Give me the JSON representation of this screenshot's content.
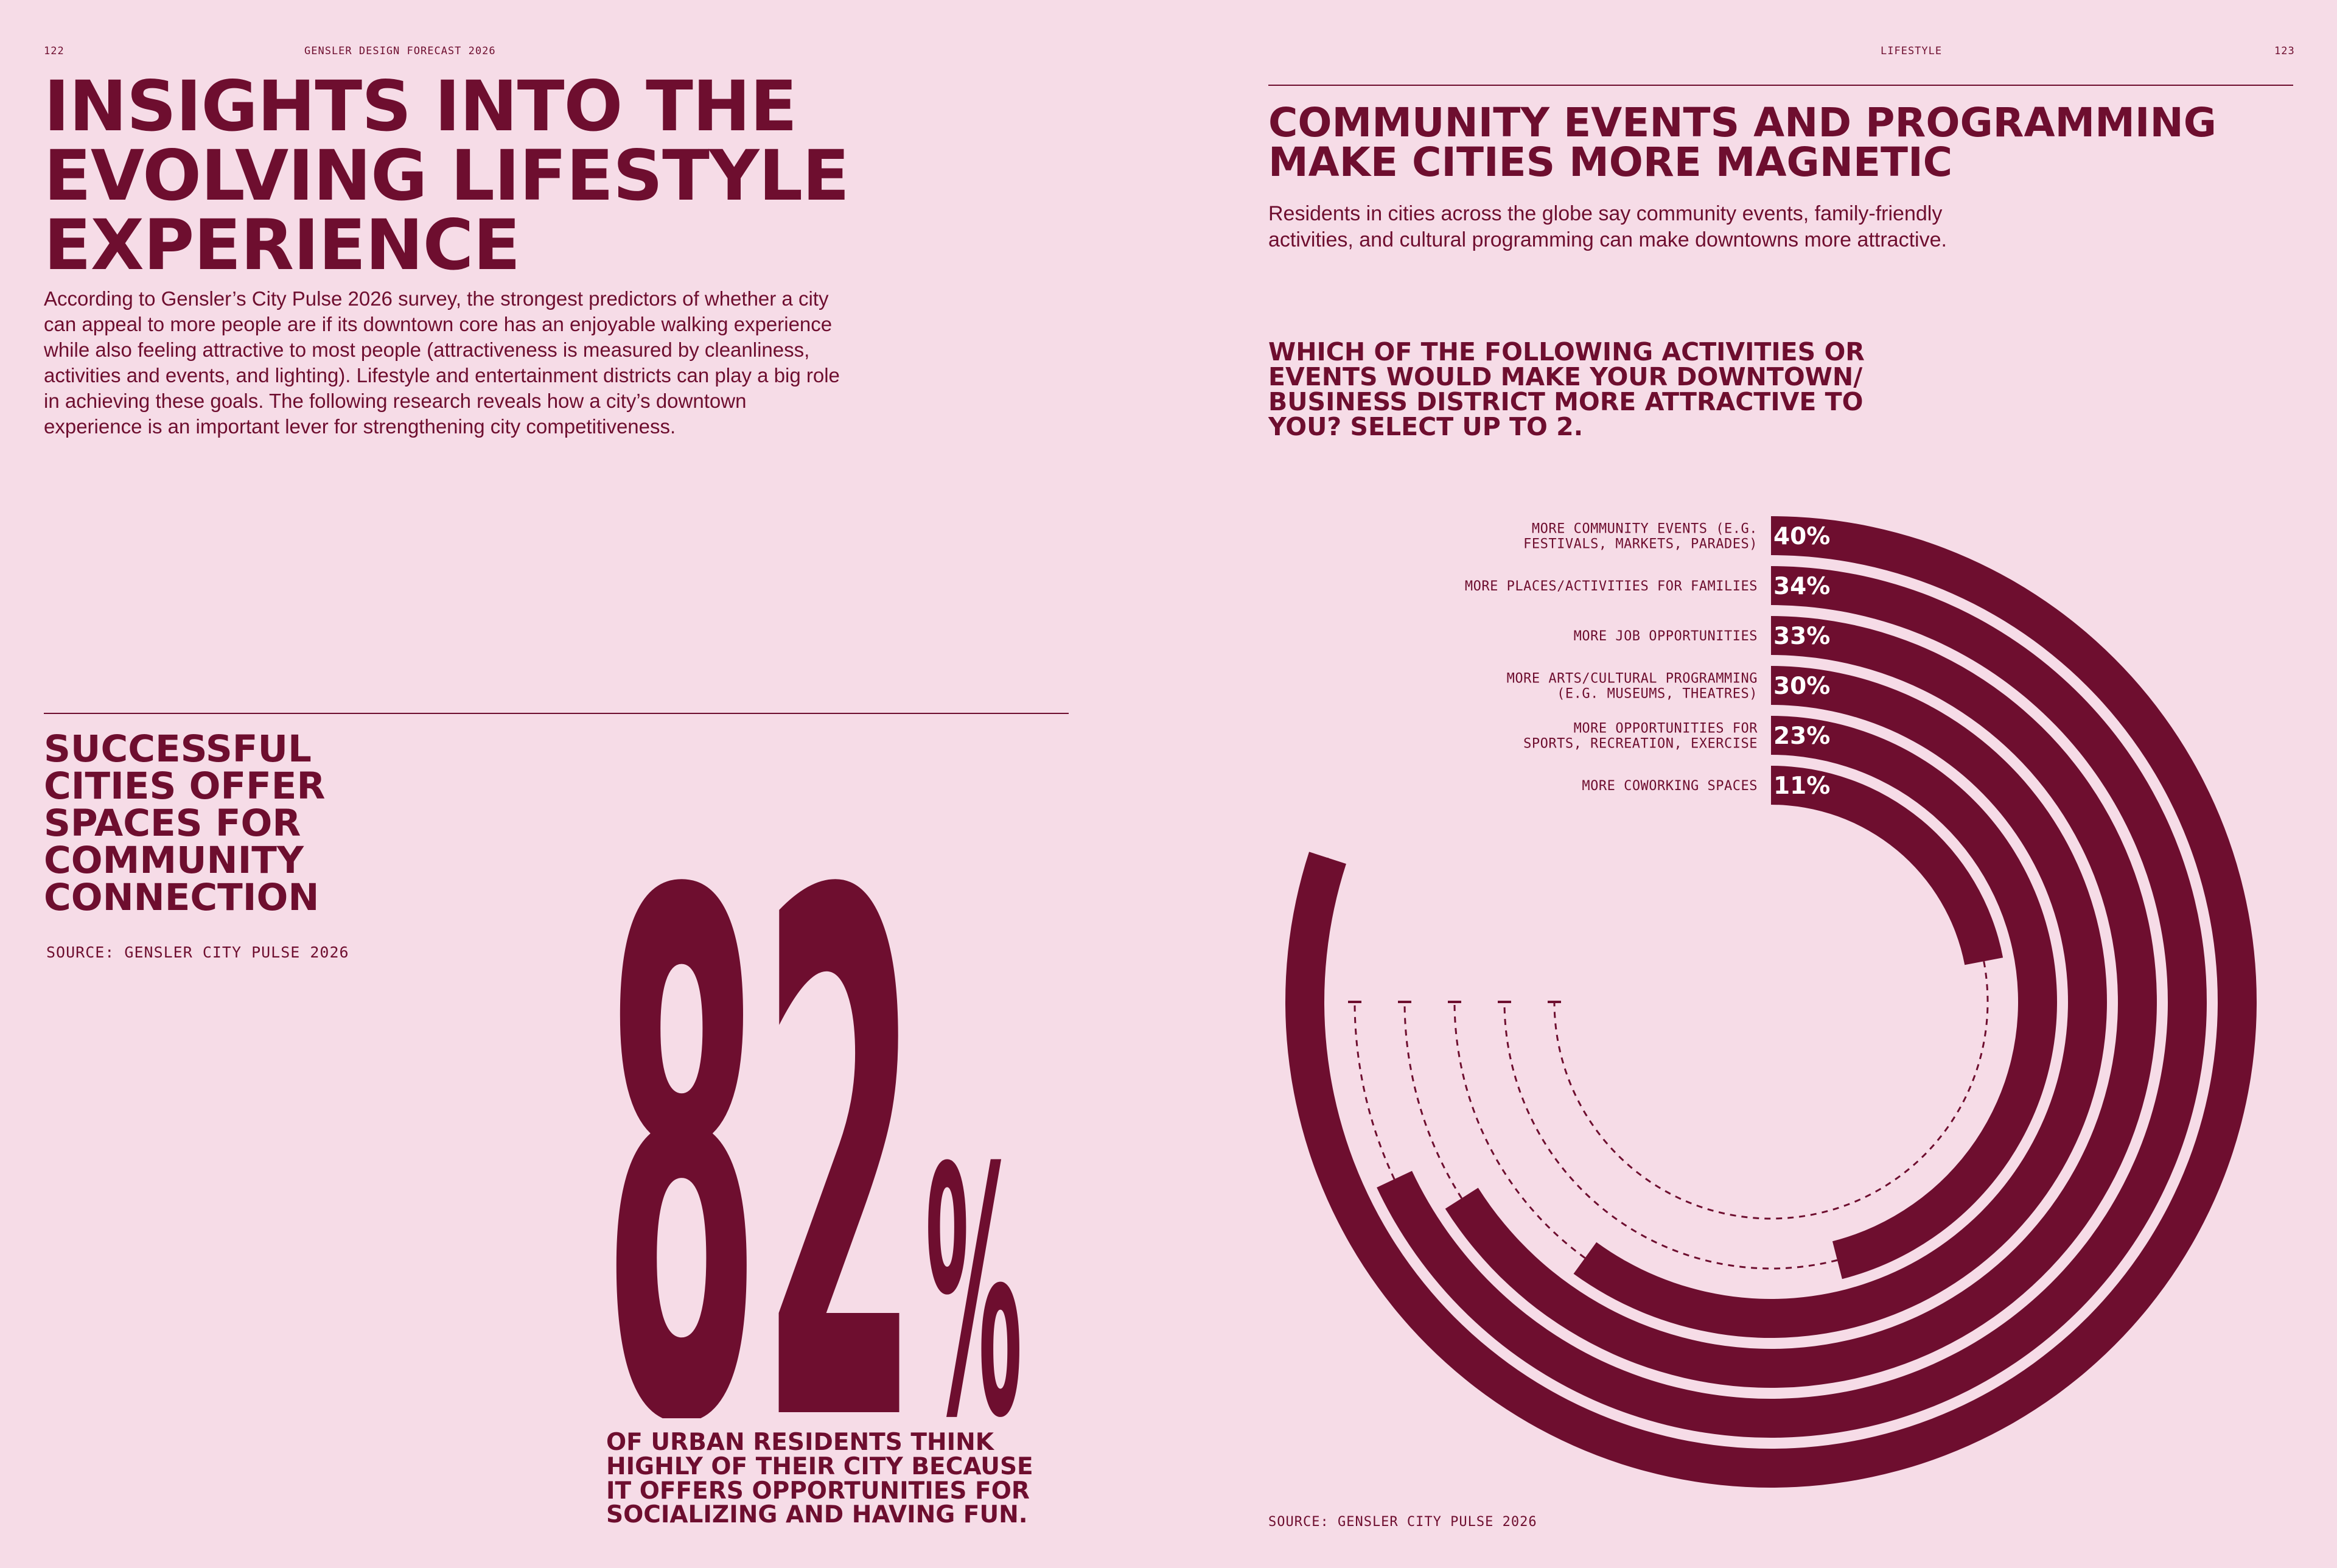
{
  "header": {
    "left_page_number": "122",
    "left_running_head": "GENSLER DESIGN FORECAST 2026",
    "right_running_head": "LIFESTYLE",
    "right_page_number": "123"
  },
  "left": {
    "title_lines": [
      "INSIGHTS INTO THE",
      "EVOLVING LIFESTYLE",
      "EXPERIENCE"
    ],
    "intro": "According to Gensler’s City Pulse 2026 survey, the strongest predictors of whether a city can appeal to more people are if its downtown core has an enjoyable walking experience while also feeling attractive to most people (attractiveness is measured by cleanliness, activities and events, and lighting). Lifestyle and entertainment districts can play a big role in achieving these goals. The following research reveals how a city’s downtown experience is an important lever for strengthening city competitiveness.",
    "subsection_lines": [
      "SUCCESSFUL",
      "CITIES OFFER",
      "SPACES FOR",
      "COMMUNITY",
      "CONNECTION"
    ],
    "subsection_source": "SOURCE: GENSLER CITY PULSE 2026",
    "big_number": "82",
    "big_unit": "%",
    "big_caption_lines": [
      "OF URBAN RESIDENTS THINK",
      "HIGHLY OF THEIR CITY BECAUSE",
      "IT OFFERS OPPORTUNITIES FOR",
      "SOCIALIZING AND HAVING FUN."
    ]
  },
  "right": {
    "title_lines": [
      "COMMUNITY EVENTS AND PROGRAMMING",
      "MAKE CITIES MORE MAGNETIC"
    ],
    "intro_lines": [
      "Residents in cities across the globe say community events, family-friendly",
      "activities, and cultural programming can make downtowns more attractive."
    ],
    "question_lines": [
      "WHICH OF THE FOLLOWING ACTIVITIES OR",
      "EVENTS WOULD MAKE YOUR DOWNTOWN/",
      "BUSINESS DISTRICT MORE ATTRACTIVE TO",
      "YOU? SELECT UP TO 2."
    ],
    "source": "SOURCE: GENSLER CITY PULSE 2026"
  },
  "colors": {
    "background": "#f6dce7",
    "accent": "#6e0e2f",
    "label_text": "#ffffff"
  },
  "chart_data": {
    "type": "bar",
    "subtype": "radial",
    "title": "WHICH OF THE FOLLOWING ACTIVITIES OR EVENTS WOULD MAKE YOUR DOWNTOWN/BUSINESS DISTRICT MORE ATTRACTIVE TO YOU? SELECT UP TO 2.",
    "categories": [
      "MORE COMMUNITY EVENTS (E.G. FESTIVALS, MARKETS, PARADES)",
      "MORE PLACES/ACTIVITIES FOR FAMILIES",
      "MORE JOB OPPORTUNITIES",
      "MORE ARTS/CULTURAL PROGRAMMING (E.G. MUSEUMS, THEATRES)",
      "MORE OPPORTUNITIES FOR SPORTS, RECREATION, EXERCISE",
      "MORE COWORKING SPACES"
    ],
    "label_lines": [
      [
        "MORE COMMUNITY EVENTS (E.G.",
        "FESTIVALS, MARKETS, PARADES)"
      ],
      [
        "MORE PLACES/ACTIVITIES FOR FAMILIES"
      ],
      [
        "MORE JOB OPPORTUNITIES"
      ],
      [
        "MORE ARTS/CULTURAL PROGRAMMING",
        "(E.G. MUSEUMS, THEATRES)"
      ],
      [
        "MORE OPPORTUNITIES FOR",
        "SPORTS, RECREATION, EXERCISE"
      ],
      [
        "MORE COWORKING SPACES"
      ]
    ],
    "values": [
      40,
      34,
      33,
      30,
      23,
      11
    ],
    "value_labels": [
      "40%",
      "34%",
      "33%",
      "30%",
      "23%",
      "11%"
    ],
    "ylim": [
      0,
      50
    ],
    "grid": false,
    "legend": "none"
  }
}
